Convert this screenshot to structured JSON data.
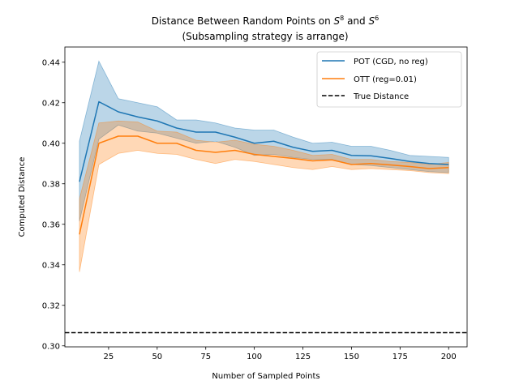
{
  "chart_data": {
    "type": "line",
    "title_line1_prefix": "Distance Between Random Points on ",
    "title_line1_s1": "S",
    "title_line1_s1_sup": "8",
    "title_line1_mid": " and ",
    "title_line1_s2": "S",
    "title_line1_s2_sup": "6",
    "title_line2": "(Subsampling strategy is arrange)",
    "xlabel": "Number of Sampled Points",
    "ylabel": "Computed Distance",
    "xlim": [
      2.5,
      209.5
    ],
    "ylim": [
      0.2995,
      0.4475
    ],
    "xticks": [
      25,
      50,
      75,
      100,
      125,
      150,
      175,
      200
    ],
    "xtick_labels": [
      "25",
      "50",
      "75",
      "100",
      "125",
      "150",
      "175",
      "200"
    ],
    "yticks": [
      0.3,
      0.32,
      0.34,
      0.36,
      0.38,
      0.4,
      0.42,
      0.44
    ],
    "ytick_labels": [
      "0.30",
      "0.32",
      "0.34",
      "0.36",
      "0.38",
      "0.40",
      "0.42",
      "0.44"
    ],
    "x": [
      10,
      20,
      30,
      40,
      50,
      60,
      70,
      80,
      90,
      100,
      110,
      120,
      130,
      140,
      150,
      160,
      170,
      180,
      190,
      200
    ],
    "series": [
      {
        "name": "POT (CGD, no reg)",
        "color": "#1f77b4",
        "values": [
          0.381,
          0.4205,
          0.4155,
          0.413,
          0.411,
          0.4075,
          0.4055,
          0.4055,
          0.403,
          0.4,
          0.401,
          0.398,
          0.396,
          0.3965,
          0.394,
          0.3938,
          0.3925,
          0.391,
          0.39,
          0.3895
        ],
        "upper": [
          0.401,
          0.4405,
          0.422,
          0.42,
          0.418,
          0.4115,
          0.4115,
          0.41,
          0.4075,
          0.4065,
          0.4065,
          0.403,
          0.4,
          0.4005,
          0.3985,
          0.3985,
          0.3965,
          0.394,
          0.3935,
          0.393
        ],
        "lower": [
          0.3615,
          0.402,
          0.409,
          0.406,
          0.405,
          0.4025,
          0.4,
          0.401,
          0.398,
          0.394,
          0.3945,
          0.393,
          0.392,
          0.392,
          0.3895,
          0.389,
          0.388,
          0.387,
          0.386,
          0.3855
        ]
      },
      {
        "name": "OTT (reg=0.01)",
        "color": "#ff7f0e",
        "values": [
          0.355,
          0.4,
          0.4035,
          0.4035,
          0.4,
          0.4,
          0.3965,
          0.3955,
          0.3965,
          0.3945,
          0.3935,
          0.3925,
          0.3913,
          0.3918,
          0.3895,
          0.39,
          0.3893,
          0.3885,
          0.3875,
          0.388
        ],
        "upper": [
          0.3725,
          0.41,
          0.411,
          0.4105,
          0.406,
          0.4055,
          0.4015,
          0.4005,
          0.4015,
          0.3995,
          0.3985,
          0.3965,
          0.394,
          0.3945,
          0.392,
          0.392,
          0.391,
          0.3905,
          0.3895,
          0.3905
        ],
        "lower": [
          0.3365,
          0.3895,
          0.395,
          0.3965,
          0.395,
          0.3945,
          0.392,
          0.39,
          0.392,
          0.391,
          0.3895,
          0.388,
          0.387,
          0.3885,
          0.387,
          0.3875,
          0.387,
          0.3865,
          0.3855,
          0.385
        ]
      }
    ],
    "reference_line": {
      "name": "True Distance",
      "y": 0.3065,
      "color": "#000000",
      "style": "dashed"
    },
    "legend": {
      "position": "top-right",
      "entries": [
        "POT (CGD, no reg)",
        "OTT (reg=0.01)",
        "True Distance"
      ]
    },
    "grid": false
  }
}
